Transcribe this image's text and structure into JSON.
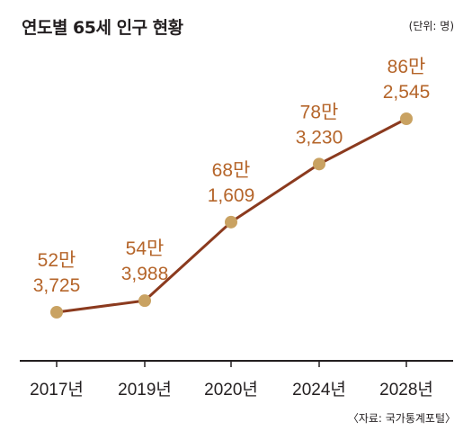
{
  "title": "연도별 65세 인구 현황",
  "unit_note": "(단위: 명)",
  "source": "〈자료: 국가통계포털〉",
  "colors": {
    "line": "#8b3a1e",
    "marker": "#c9a262",
    "label": "#b5652a",
    "axis": "#231f20"
  },
  "chart_data": {
    "type": "line",
    "title": "연도별 65세 인구 현황",
    "categories": [
      "2017년",
      "2019년",
      "2020년",
      "2024년",
      "2028년"
    ],
    "values": [
      523725,
      543988,
      681609,
      783230,
      862545
    ],
    "data_labels": [
      {
        "line1": "52만",
        "line2": "3,725"
      },
      {
        "line1": "54만",
        "line2": "3,988"
      },
      {
        "line1": "68만",
        "line2": "1,609"
      },
      {
        "line1": "78만",
        "line2": "3,230"
      },
      {
        "line1": "86만",
        "line2": "2,545"
      }
    ],
    "xlabel": "",
    "ylabel": "",
    "grid": false,
    "legend": "none"
  }
}
